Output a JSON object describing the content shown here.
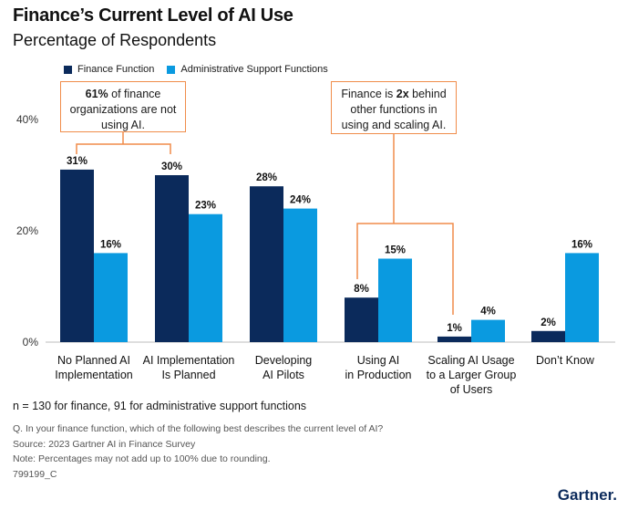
{
  "header": {
    "title": "Finance’s Current Level of AI Use",
    "subtitle": "Percentage of Respondents"
  },
  "colors": {
    "finance": "#0b2a5b",
    "admin": "#0a9ae0",
    "annotation": "#f08c4a"
  },
  "chart_data": {
    "type": "bar",
    "title": "Finance’s Current Level of AI Use",
    "ylabel": "Percentage of Respondents",
    "ylim": [
      0,
      40
    ],
    "yticks": [
      "0%",
      "20%",
      "40%"
    ],
    "categories": [
      [
        "No Planned AI",
        "Implementation"
      ],
      [
        "AI Implementation",
        "Is Planned"
      ],
      [
        "Developing",
        "AI Pilots"
      ],
      [
        "Using AI",
        "in Production"
      ],
      [
        "Scaling AI Usage",
        "to a Larger Group",
        "of Users"
      ],
      [
        "Don’t Know"
      ]
    ],
    "series": [
      {
        "name": "Finance Function",
        "values": [
          31,
          30,
          28,
          8,
          1,
          2
        ],
        "labels": [
          "31%",
          "30%",
          "28%",
          "8%",
          "1%",
          "2%"
        ]
      },
      {
        "name": "Administrative Support Functions",
        "values": [
          16,
          23,
          24,
          15,
          4,
          16
        ],
        "labels": [
          "16%",
          "23%",
          "24%",
          "15%",
          "4%",
          "16%"
        ]
      }
    ]
  },
  "annotations": {
    "left": {
      "pre": "",
      "bold": "61%",
      "post": " of finance organizations are not using AI."
    },
    "right": {
      "pre": "Finance is ",
      "bold": "2x",
      "post": " behind other functions in using and scaling AI."
    }
  },
  "footer": {
    "n_note": "n = 130 for finance, 91 for administrative support functions",
    "question": "Q. In your finance function, which of the following best describes the current level of AI?",
    "source": "Source: 2023 Gartner AI in Finance Survey",
    "note": "Note: Percentages may not add up to 100% due to rounding.",
    "id": "799199_C",
    "logo": "Gartner."
  }
}
